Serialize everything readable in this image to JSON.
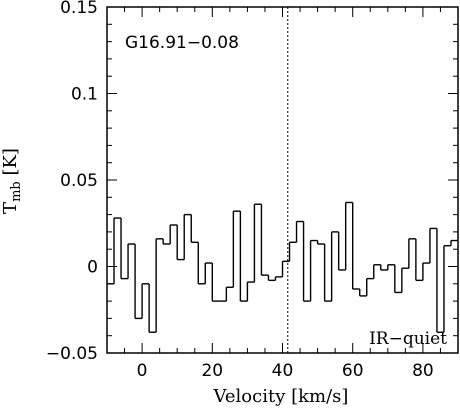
{
  "chart_data": {
    "type": "line",
    "style": "step",
    "title": "",
    "xlabel": "Velocity [km/s]",
    "ylabel": {
      "main": "T",
      "sub": "mb",
      "unit": " [K]"
    },
    "xlim": [
      -10,
      90
    ],
    "ylim": [
      -0.05,
      0.15
    ],
    "xticks": [
      0,
      20,
      40,
      60,
      80
    ],
    "yticks": [
      -0.05,
      0,
      0.05,
      0.1,
      0.15
    ],
    "xtick_labels": [
      "0",
      "20",
      "40",
      "60",
      "80"
    ],
    "ytick_labels": [
      "−0.05",
      "0",
      "0.05",
      "0.1",
      "0.15"
    ],
    "source_name": "G16.91−0.08",
    "classification": "IR−quiet",
    "reference_velocity": 41.5,
    "grid": false,
    "series": [
      {
        "x": [
          -9,
          -7,
          -5,
          -3,
          -1,
          1,
          3,
          5,
          7,
          9,
          11,
          13,
          15,
          17,
          19,
          21,
          23,
          25,
          27,
          29,
          31,
          33,
          35,
          37,
          39,
          41,
          43,
          45,
          47,
          49,
          51,
          53,
          55,
          57,
          59,
          61,
          63,
          65,
          67,
          69,
          71,
          73,
          75,
          77,
          79,
          81,
          83,
          85,
          87,
          89
        ],
        "y": [
          -0.01,
          0.028,
          -0.007,
          0.013,
          -0.03,
          -0.01,
          -0.038,
          0.016,
          0.013,
          0.024,
          0.004,
          0.03,
          0.014,
          -0.01,
          0.002,
          -0.02,
          -0.02,
          -0.012,
          0.032,
          -0.02,
          -0.009,
          0.036,
          -0.005,
          -0.008,
          -0.006,
          0.003,
          0.014,
          0.026,
          -0.02,
          0.015,
          0.013,
          -0.02,
          0.02,
          -0.002,
          0.037,
          -0.013,
          -0.017,
          -0.007,
          0.001,
          -0.002,
          0.001,
          -0.015,
          -0.001,
          0.016,
          -0.008,
          0.002,
          0.022,
          -0.038,
          0.012,
          0.015
        ]
      }
    ]
  }
}
